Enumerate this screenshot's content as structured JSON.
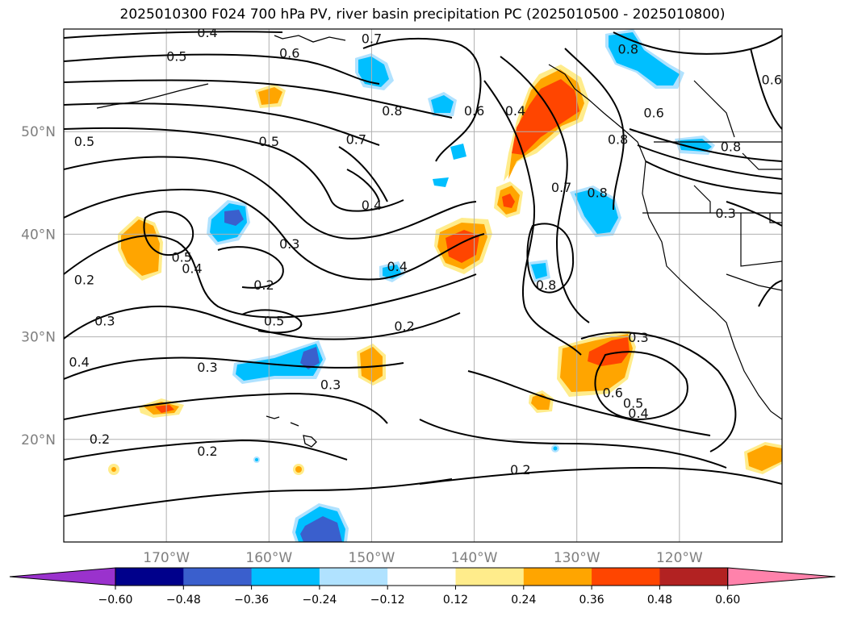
{
  "title": "2025010300 F024 700 hPa PV, river basin precipitation PC (2025010500 - 2025010800)",
  "map": {
    "lon_range": [
      -180,
      -110
    ],
    "lat_range": [
      10,
      60
    ],
    "lon_ticks": [
      {
        "lon": -170,
        "label": "170°W"
      },
      {
        "lon": -160,
        "label": "160°W"
      },
      {
        "lon": -150,
        "label": "150°W"
      },
      {
        "lon": -140,
        "label": "140°W"
      },
      {
        "lon": -130,
        "label": "130°W"
      },
      {
        "lon": -120,
        "label": "120°W"
      }
    ],
    "lat_ticks": [
      {
        "lat": 20,
        "label": "20°N"
      },
      {
        "lat": 30,
        "label": "30°N"
      },
      {
        "lat": 40,
        "label": "40°N"
      },
      {
        "lat": 50,
        "label": "50°N"
      }
    ],
    "grid": true,
    "contour_labels": [
      {
        "text": "0.4",
        "lon": -166.0,
        "lat": 59.6
      },
      {
        "text": "0.5",
        "lon": -169.0,
        "lat": 57.3
      },
      {
        "text": "0.6",
        "lon": -158.0,
        "lat": 57.6
      },
      {
        "text": "0.7",
        "lon": -150.0,
        "lat": 59.0
      },
      {
        "text": "0.8",
        "lon": -148.0,
        "lat": 52.0
      },
      {
        "text": "0.5",
        "lon": -178.0,
        "lat": 49.0
      },
      {
        "text": "0.5",
        "lon": -160.0,
        "lat": 49.0
      },
      {
        "text": "0.7",
        "lon": -151.5,
        "lat": 49.2
      },
      {
        "text": "0.4",
        "lon": -150.0,
        "lat": 42.8
      },
      {
        "text": "0.6",
        "lon": -140.0,
        "lat": 52.0
      },
      {
        "text": "0.4",
        "lon": -136.0,
        "lat": 52.0
      },
      {
        "text": "0.7",
        "lon": -131.5,
        "lat": 44.5
      },
      {
        "text": "0.8",
        "lon": -128.0,
        "lat": 44.0
      },
      {
        "text": "0.8",
        "lon": -125.0,
        "lat": 58.0
      },
      {
        "text": "0.6",
        "lon": -122.5,
        "lat": 51.8
      },
      {
        "text": "0.8",
        "lon": -126.0,
        "lat": 49.2
      },
      {
        "text": "0.6",
        "lon": -111.0,
        "lat": 55.0
      },
      {
        "text": "0.8",
        "lon": -115.0,
        "lat": 48.5
      },
      {
        "text": "0.3",
        "lon": -115.5,
        "lat": 42.0
      },
      {
        "text": "0.3",
        "lon": -158.0,
        "lat": 39.0
      },
      {
        "text": "0.5",
        "lon": -168.5,
        "lat": 37.7
      },
      {
        "text": "0.4",
        "lon": -167.5,
        "lat": 36.6
      },
      {
        "text": "0.2",
        "lon": -178.0,
        "lat": 35.5
      },
      {
        "text": "0.2",
        "lon": -160.5,
        "lat": 35.0
      },
      {
        "text": "0.5",
        "lon": -159.5,
        "lat": 31.5
      },
      {
        "text": "0.3",
        "lon": -176.0,
        "lat": 31.5
      },
      {
        "text": "0.4",
        "lon": -178.5,
        "lat": 27.5
      },
      {
        "text": "0.3",
        "lon": -166.0,
        "lat": 27.0
      },
      {
        "text": "0.2",
        "lon": -146.8,
        "lat": 31.0
      },
      {
        "text": "0.4",
        "lon": -147.5,
        "lat": 36.8
      },
      {
        "text": "0.3",
        "lon": -154.0,
        "lat": 25.3
      },
      {
        "text": "0.8",
        "lon": -133.0,
        "lat": 35.0
      },
      {
        "text": "0.3",
        "lon": -124.0,
        "lat": 29.9
      },
      {
        "text": "0.6",
        "lon": -126.5,
        "lat": 24.5
      },
      {
        "text": "0.5",
        "lon": -124.5,
        "lat": 23.5
      },
      {
        "text": "0.4",
        "lon": -124.0,
        "lat": 22.5
      },
      {
        "text": "0.2",
        "lon": -176.5,
        "lat": 20.0
      },
      {
        "text": "0.2",
        "lon": -166.0,
        "lat": 18.8
      },
      {
        "text": "0.2",
        "lon": -135.5,
        "lat": 17.0
      }
    ]
  },
  "colorbar": {
    "ticks": [
      "−0.60",
      "−0.48",
      "−0.36",
      "−0.24",
      "−0.12",
      "0.12",
      "0.24",
      "0.36",
      "0.48",
      "0.60"
    ],
    "colors": [
      "#9a32cd",
      "#00008b",
      "#3a5fcd",
      "#00bfff",
      "#b0e2ff",
      "#ffffff",
      "#ffec8b",
      "#ffa500",
      "#ff4500",
      "#b22222",
      "#ff82ab"
    ]
  }
}
